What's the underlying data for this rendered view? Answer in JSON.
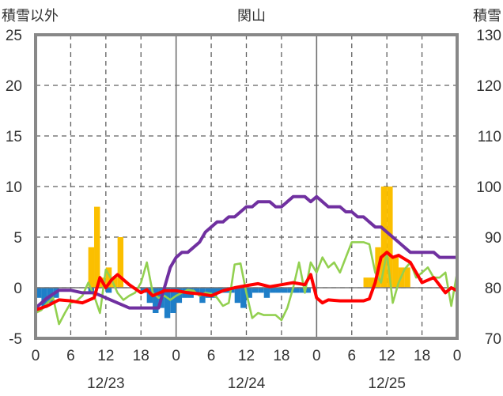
{
  "chart_data": {
    "type": "bar+line",
    "title": "関山",
    "ylabel_left": "積雪以外",
    "ylabel_right": "積雪",
    "ylim_left": [
      -5,
      25
    ],
    "yticks_left": [
      "25",
      "20",
      "15",
      "10",
      "5",
      "0",
      "-5"
    ],
    "ylim_right": [
      70,
      130
    ],
    "yticks_right": [
      "130",
      "120",
      "110",
      "100",
      "90",
      "80",
      "70"
    ],
    "x_range_hours": [
      0,
      72
    ],
    "x_ticks": [
      "0",
      "6",
      "12",
      "18",
      "0",
      "6",
      "12",
      "18",
      "0",
      "6",
      "12",
      "18",
      "0"
    ],
    "dates": [
      "12/23",
      "12/24",
      "12/25"
    ],
    "grid": true,
    "colors": {
      "snowfall": "#fbbf00",
      "precip_neg": "#1e7ec8",
      "temperature": "#ff0000",
      "wind": "#92d050",
      "snow_depth": "#7030a0",
      "frame": "#888888"
    },
    "series": [
      {
        "kind": "bar-positive",
        "color_key": "snowfall",
        "x": [
          9.5,
          10.5,
          11.5,
          12.5,
          13.5,
          14.5,
          56.5,
          57.5,
          58.5,
          59.5,
          60.5,
          61.5,
          62.5,
          63.5
        ],
        "values": [
          4,
          8,
          1,
          2,
          1,
          5,
          1,
          1,
          4,
          10,
          10,
          3,
          2,
          2
        ]
      },
      {
        "kind": "bar-negative",
        "color_key": "precip_neg",
        "x": [
          0.5,
          1.5,
          2.5,
          3.5,
          9.5,
          12.5,
          18.5,
          19.5,
          20.5,
          21.5,
          22.5,
          23.5,
          24.5,
          25.5,
          26.5,
          27.5,
          28.5,
          29.5,
          30.5,
          31.5,
          32.5,
          33.5,
          34.5,
          35.5,
          36.5,
          37.5,
          38.5,
          39.5,
          40.5,
          41.5,
          42.5,
          43.5,
          44.5,
          45.5,
          46.5
        ],
        "values": [
          -1,
          -2,
          -1.5,
          -1,
          -0.5,
          -0.5,
          -0.5,
          -1.5,
          -2.5,
          -2,
          -3,
          -2.5,
          -1.5,
          -1,
          -1,
          -0.5,
          -1.5,
          -1,
          -1,
          -0.5,
          -0.5,
          -0.5,
          -1.5,
          -2,
          -1,
          -0.5,
          -0.5,
          -1,
          -0.5,
          -0.5,
          -0.5,
          -0.5,
          -0.5,
          -0.5,
          -0.5
        ]
      },
      {
        "kind": "line",
        "color_key": "temperature",
        "axis": "left",
        "x": [
          0,
          2,
          4,
          6,
          8,
          10,
          11,
          12,
          13,
          14,
          16,
          18,
          19,
          20,
          22,
          24,
          26,
          28,
          30,
          32,
          34,
          36,
          38,
          40,
          42,
          44,
          46,
          47,
          48,
          49,
          50,
          52,
          54,
          56,
          57,
          58,
          59,
          60,
          61,
          62,
          64,
          66,
          68,
          70,
          71,
          72
        ],
        "values": [
          -2.2,
          -1.8,
          -1.2,
          -1.3,
          -1.5,
          -1.0,
          1.0,
          0.0,
          0.8,
          1.3,
          0.3,
          -0.5,
          -0.2,
          -0.8,
          -0.3,
          -0.3,
          -0.5,
          -0.6,
          -0.8,
          -0.3,
          0,
          0.2,
          0.4,
          0.1,
          0.3,
          0.5,
          0.3,
          1.3,
          -1.0,
          -1.5,
          -1.2,
          -1.3,
          -1.3,
          -1.3,
          -1.1,
          0.5,
          3.0,
          3.5,
          3.0,
          3.2,
          2.5,
          0.5,
          1.0,
          -0.5,
          0.0,
          -0.3
        ]
      },
      {
        "kind": "line",
        "color_key": "wind",
        "axis": "left",
        "x": [
          0,
          1,
          2,
          3,
          4,
          5,
          6,
          7,
          8,
          9,
          10,
          11,
          12,
          13,
          14,
          15,
          16,
          17,
          18,
          19,
          20,
          21,
          22,
          23,
          24,
          25,
          26,
          27,
          28,
          29,
          30,
          31,
          32,
          33,
          34,
          35,
          36,
          37,
          38,
          39,
          40,
          41,
          42,
          43,
          44,
          45,
          46,
          47,
          48,
          49,
          50,
          51,
          52,
          53,
          54,
          55,
          56,
          57,
          58,
          59,
          60,
          61,
          62,
          63,
          64,
          65,
          66,
          67,
          68,
          69,
          70,
          71,
          72
        ],
        "values": [
          -2.5,
          -2.2,
          -1.5,
          -1.0,
          -3.6,
          -2.5,
          -1.5,
          -1.3,
          -0.8,
          0.5,
          -0.8,
          -2.5,
          1.8,
          0.8,
          -0.5,
          -1.2,
          -0.8,
          -0.5,
          0.5,
          2.5,
          -0.5,
          -1.0,
          -0.8,
          -1.2,
          -0.8,
          -0.5,
          -0.2,
          -0.3,
          -0.8,
          -0.5,
          -0.6,
          -1.0,
          -1.8,
          -1.5,
          2.3,
          2.4,
          -0.5,
          -3.0,
          -2.5,
          -2.7,
          -2.7,
          -2.7,
          -3.2,
          -2.0,
          0.0,
          2.5,
          -0.5,
          2.5,
          1.5,
          3.0,
          2.0,
          2.5,
          1.5,
          3.0,
          4.5,
          4.5,
          4.5,
          4.3,
          1.5,
          0.5,
          3.5,
          -1.5,
          0.5,
          1.8,
          2.5,
          1.0,
          1.5,
          2.0,
          1.0,
          1.0,
          1.5,
          -1.8,
          1.5
        ]
      },
      {
        "kind": "line",
        "color_key": "snow_depth",
        "axis": "right",
        "x": [
          0,
          2,
          4,
          6,
          8,
          10,
          12,
          14,
          16,
          18,
          20,
          21,
          22,
          23,
          24,
          25,
          26,
          27,
          28,
          29,
          30,
          31,
          32,
          33,
          34,
          35,
          36,
          37,
          38,
          39,
          40,
          41,
          42,
          43,
          44,
          45,
          46,
          47,
          48,
          49,
          50,
          51,
          52,
          53,
          54,
          55,
          56,
          57,
          58,
          59,
          60,
          61,
          62,
          63,
          64,
          65,
          66,
          67,
          68,
          69,
          70,
          71,
          72
        ],
        "values": [
          76,
          78,
          79.5,
          79.5,
          79,
          79,
          78,
          77,
          76,
          76,
          76,
          76,
          80,
          84,
          86,
          87,
          87,
          88,
          89,
          91,
          92,
          93,
          93,
          94,
          94,
          95,
          96,
          96,
          97,
          97,
          97,
          96,
          96,
          97,
          98,
          98,
          98,
          97,
          98,
          97,
          96,
          96,
          96,
          95,
          95,
          94,
          94,
          93,
          92,
          92,
          91,
          90,
          89,
          88,
          87,
          87,
          87,
          87,
          87,
          86,
          86,
          86,
          86
        ]
      }
    ]
  }
}
